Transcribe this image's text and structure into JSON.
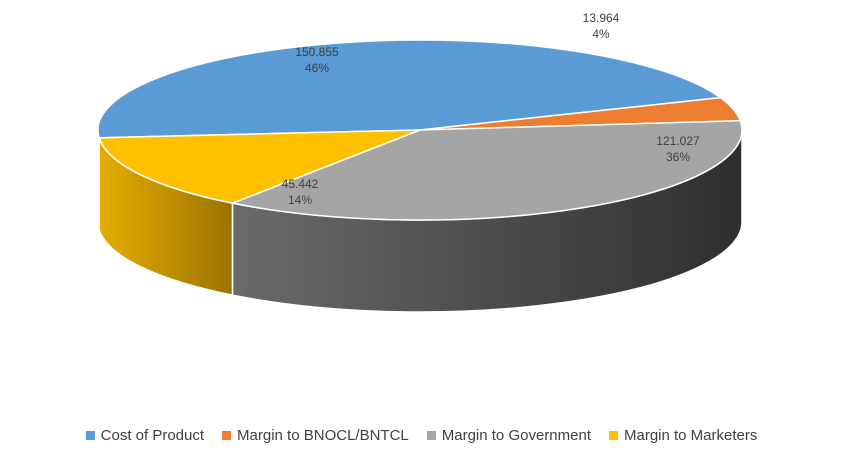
{
  "chart_data": {
    "type": "pie",
    "style": "3d",
    "title": "",
    "legend_position": "bottom",
    "slices": [
      {
        "name": "Cost of Product",
        "value": 150.855,
        "percent_label": "46%",
        "value_label": "150.855",
        "color": "#5b9bd5"
      },
      {
        "name": "Margin to BNOCL/BNTCL",
        "value": 13.964,
        "percent_label": "4%",
        "value_label": "13.964",
        "color": "#ed7d31"
      },
      {
        "name": "Margin to Government",
        "value": 121.027,
        "percent_label": "36%",
        "value_label": "121.027",
        "color": "#a5a5a5"
      },
      {
        "name": "Margin to Marketers",
        "value": 45.442,
        "percent_label": "14%",
        "value_label": "45.442",
        "color": "#ffc000"
      }
    ]
  }
}
